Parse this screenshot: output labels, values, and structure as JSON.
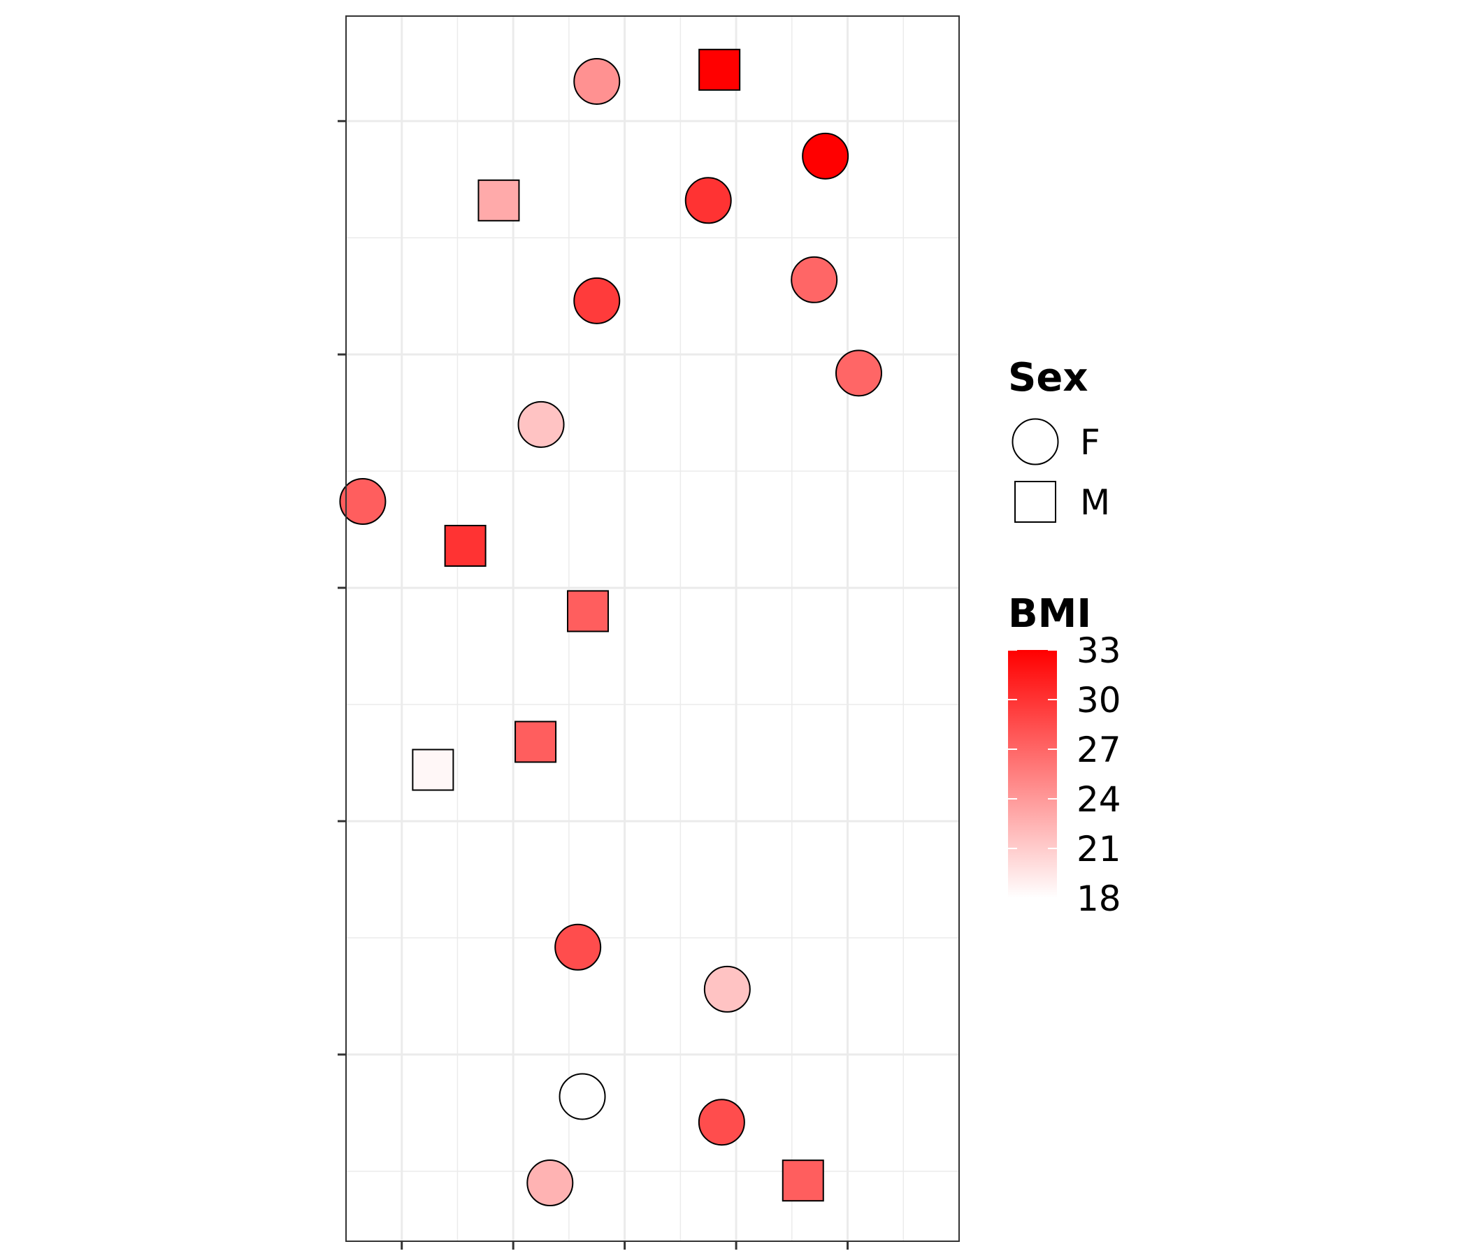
{
  "chart_data": {
    "type": "scatter",
    "title": "",
    "xlabel": "",
    "ylabel": "",
    "xlim": [
      -0.5,
      5.0
    ],
    "ylim": [
      -0.8,
      4.45
    ],
    "x_ticks": [
      0,
      1,
      2,
      3,
      4
    ],
    "y_ticks": [
      0,
      1,
      2,
      3,
      4
    ],
    "grid": true,
    "points": [
      {
        "x": 1.75,
        "y": 4.17,
        "sex": "F",
        "bmi": 24.5
      },
      {
        "x": 2.85,
        "y": 4.22,
        "sex": "M",
        "bmi": 33.0
      },
      {
        "x": 3.8,
        "y": 3.85,
        "sex": "F",
        "bmi": 33.0
      },
      {
        "x": 0.87,
        "y": 3.66,
        "sex": "M",
        "bmi": 23.0
      },
      {
        "x": 2.75,
        "y": 3.66,
        "sex": "F",
        "bmi": 30.0
      },
      {
        "x": 3.7,
        "y": 3.32,
        "sex": "F",
        "bmi": 27.0
      },
      {
        "x": 1.75,
        "y": 3.23,
        "sex": "F",
        "bmi": 29.5
      },
      {
        "x": 4.1,
        "y": 2.92,
        "sex": "F",
        "bmi": 27.0
      },
      {
        "x": 1.25,
        "y": 2.7,
        "sex": "F",
        "bmi": 21.5
      },
      {
        "x": -0.35,
        "y": 2.37,
        "sex": "F",
        "bmi": 27.5
      },
      {
        "x": 0.57,
        "y": 2.18,
        "sex": "M",
        "bmi": 30.0
      },
      {
        "x": 1.67,
        "y": 1.9,
        "sex": "M",
        "bmi": 27.5
      },
      {
        "x": 1.2,
        "y": 1.34,
        "sex": "M",
        "bmi": 27.5
      },
      {
        "x": 0.28,
        "y": 1.22,
        "sex": "M",
        "bmi": 18.5
      },
      {
        "x": 1.58,
        "y": 0.46,
        "sex": "F",
        "bmi": 28.5
      },
      {
        "x": 2.92,
        "y": 0.28,
        "sex": "F",
        "bmi": 21.5
      },
      {
        "x": 1.62,
        "y": -0.18,
        "sex": "F",
        "bmi": 18.0
      },
      {
        "x": 2.87,
        "y": -0.29,
        "sex": "F",
        "bmi": 28.5
      },
      {
        "x": 1.33,
        "y": -0.55,
        "sex": "F",
        "bmi": 22.5
      },
      {
        "x": 3.6,
        "y": -0.54,
        "sex": "M",
        "bmi": 27.5
      }
    ],
    "legends": {
      "shape": {
        "title": "Sex",
        "entries": [
          {
            "label": "F",
            "shape": "circle"
          },
          {
            "label": "M",
            "shape": "square"
          }
        ]
      },
      "fill": {
        "title": "BMI",
        "min": 18,
        "max": 33,
        "ticks": [
          "33",
          "30",
          "27",
          "24",
          "21",
          "18"
        ],
        "low_color": "#ffffff",
        "high_color": "#ff0000"
      }
    }
  }
}
